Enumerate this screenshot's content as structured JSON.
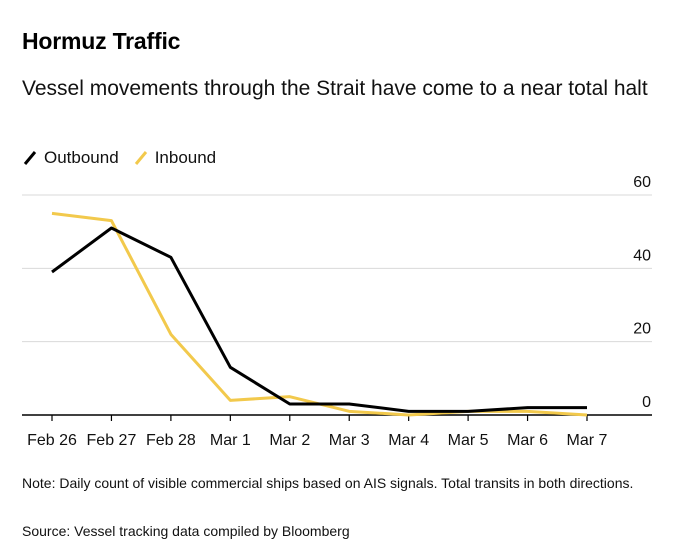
{
  "title": "Hormuz Traffic",
  "subtitle": "Vessel movements through the Strait have come to a near total halt",
  "note": "Note: Daily count of visible commercial ships based on AIS signals. Total transits in both directions.",
  "source": "Source: Vessel tracking data compiled by Bloomberg",
  "colors": {
    "outbound": "#000000",
    "inbound": "#f2c94c",
    "grid": "#d9d9d9",
    "axis": "#000000"
  },
  "chart_data": {
    "type": "line",
    "title": "Hormuz Traffic",
    "xlabel": "",
    "ylabel": "",
    "categories": [
      "Feb 26",
      "Feb 27",
      "Feb 28",
      "Mar 1",
      "Mar 2",
      "Mar 3",
      "Mar 4",
      "Mar 5",
      "Mar 6",
      "Mar 7"
    ],
    "yticks": [
      0,
      20,
      40,
      60
    ],
    "ylim": [
      0,
      60
    ],
    "grid": true,
    "legend_position": "top-left",
    "series": [
      {
        "name": "Outbound",
        "color": "#000000",
        "values": [
          39,
          51,
          43,
          13,
          3,
          3,
          1,
          1,
          2,
          2
        ]
      },
      {
        "name": "Inbound",
        "color": "#f2c94c",
        "values": [
          55,
          53,
          22,
          4,
          5,
          1,
          0,
          1,
          1,
          0
        ]
      }
    ]
  }
}
